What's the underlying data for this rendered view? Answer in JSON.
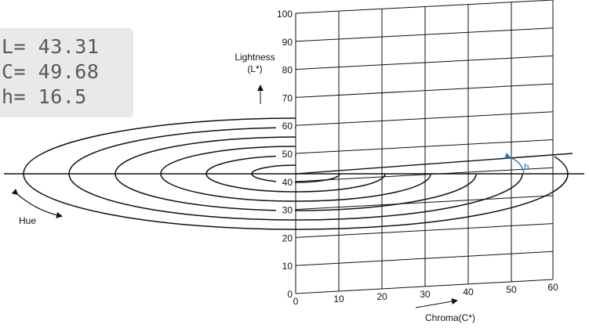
{
  "readout": {
    "L": "L= 43.31",
    "C": "C= 49.68",
    "h": "h= 16.5"
  },
  "axes": {
    "lightness_label": "Lightness",
    "lightness_symbol": "(L*)",
    "chroma_label": "Chroma(C*)",
    "hue_label": "Hue",
    "hue_angle_label": "h",
    "lightness_ticks": [
      "0",
      "10",
      "20",
      "30",
      "40",
      "50",
      "60",
      "70",
      "80",
      "90",
      "100"
    ],
    "chroma_ticks": [
      "0",
      "10",
      "20",
      "30",
      "40",
      "50",
      "60"
    ]
  },
  "colors": {
    "hue_angle": "#1f78c8",
    "readout_bg": "#e9e9e9",
    "readout_text": "#5a5a5a"
  }
}
